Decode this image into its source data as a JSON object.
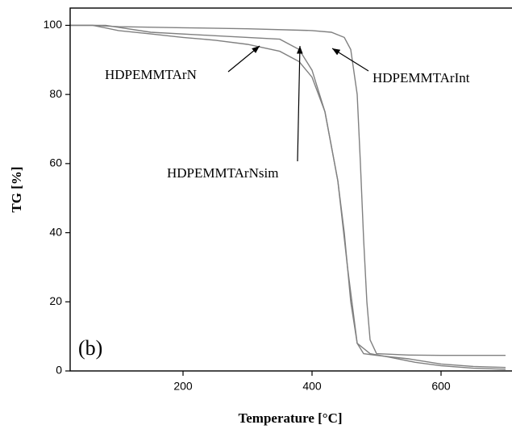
{
  "chart_data": {
    "type": "line",
    "xlabel": "Temperature [°C]",
    "ylabel": "TG [%]",
    "panel_label": "(b)",
    "xlim": [
      25,
      710
    ],
    "ylim": [
      0,
      105
    ],
    "xticks": [
      200,
      400,
      600
    ],
    "yticks": [
      0,
      20,
      40,
      60,
      80,
      100
    ],
    "series": [
      {
        "name": "HDPEMMTArN",
        "color": "#808080",
        "x": [
          25,
          60,
          100,
          150,
          200,
          250,
          300,
          350,
          380,
          400,
          420,
          440,
          450,
          460,
          470,
          480,
          500,
          550,
          600,
          650,
          700
        ],
        "values": [
          100,
          100,
          98.5,
          97.5,
          96.5,
          95.7,
          94.5,
          92.5,
          89.5,
          85,
          75,
          55,
          40,
          20,
          8,
          5,
          4.5,
          3.5,
          2,
          1.3,
          1
        ]
      },
      {
        "name": "HDPEMMTArInt",
        "color": "#808080",
        "x": [
          25,
          60,
          100,
          200,
          300,
          400,
          430,
          450,
          460,
          470,
          475,
          480,
          485,
          490,
          500,
          550,
          600,
          700
        ],
        "values": [
          100,
          100,
          99.6,
          99.3,
          99,
          98.5,
          98,
          96.5,
          93,
          80,
          60,
          38,
          20,
          9,
          5,
          4.6,
          4.5,
          4.5
        ]
      },
      {
        "name": "HDPEMMTArNsim",
        "color": "#808080",
        "x": [
          25,
          80,
          150,
          250,
          350,
          380,
          400,
          420,
          440,
          455,
          470,
          490,
          520,
          560,
          600,
          650,
          700
        ],
        "values": [
          100,
          100,
          98,
          97,
          96,
          93,
          87,
          75,
          55,
          30,
          8,
          5,
          4,
          2.5,
          1.5,
          0.8,
          0.5
        ]
      }
    ]
  }
}
